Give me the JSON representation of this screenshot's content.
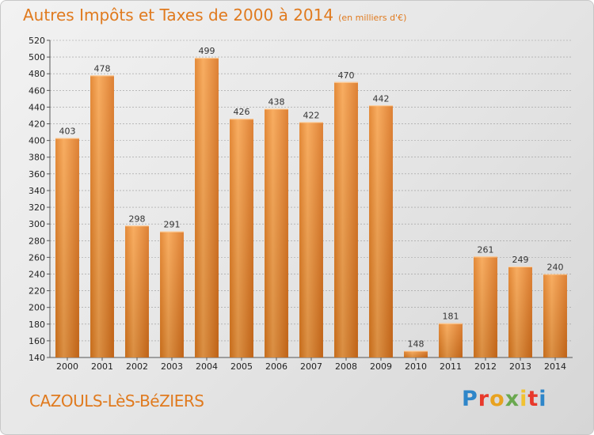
{
  "chart_data": {
    "type": "bar",
    "title": "Autres Impôts et Taxes de 2000 à 2014",
    "unit_note": "(en milliers d'€)",
    "categories": [
      "2000",
      "2001",
      "2002",
      "2003",
      "2004",
      "2005",
      "2006",
      "2007",
      "2008",
      "2009",
      "2010",
      "2011",
      "2012",
      "2013",
      "2014"
    ],
    "values": [
      403,
      478,
      298,
      291,
      499,
      426,
      438,
      422,
      470,
      442,
      148,
      181,
      261,
      249,
      240
    ],
    "ylim": [
      140,
      520
    ],
    "ytick_step": 20,
    "grid": true,
    "bar_color": "#f0922e"
  },
  "footer": {
    "town": "CAZOULS-LèS-BéZIERS",
    "logo_letters": [
      "P",
      "r",
      "o",
      "x",
      "i",
      "t",
      "i"
    ],
    "logo_colors": [
      "#2e86c9",
      "#e8392b",
      "#e8a21f",
      "#6aa84f",
      "#f1c232",
      "#e8392b",
      "#2e86c9"
    ]
  }
}
